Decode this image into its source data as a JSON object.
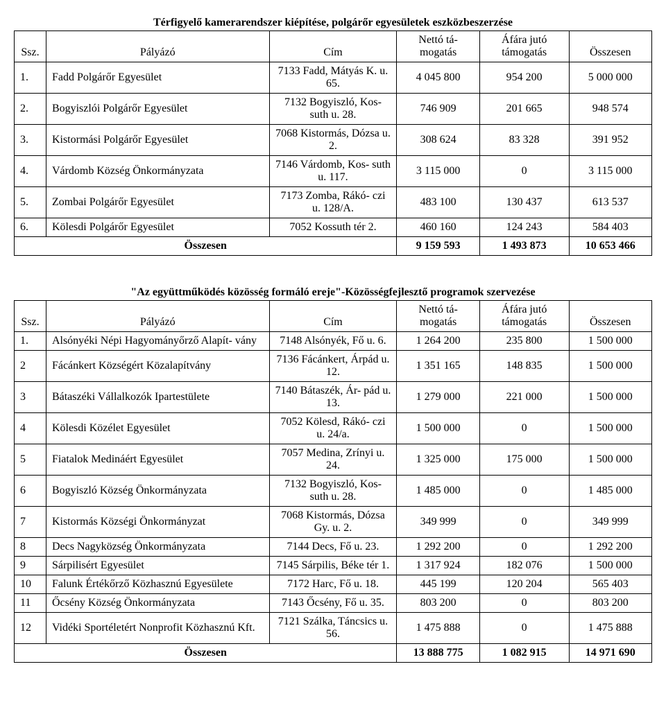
{
  "t1": {
    "title": "Térfigyelő kamerarendszer kiépítése, polgárőr egyesületek eszközbeszerzése",
    "headers": {
      "ssz": "Ssz.",
      "palyazo": "Pályázó",
      "cim": "Cím",
      "netto": "Nettó tá-\nmogatás",
      "afa": "Áfára jutó\ntámogatás",
      "ossz": "Összesen"
    },
    "rows": [
      {
        "ssz": "1.",
        "palyazo": "Fadd Polgárőr Egyesület",
        "cim": "7133 Fadd, Mátyás\nK. u. 65.",
        "netto": "4 045 800",
        "afa": "954 200",
        "ossz": "5 000 000"
      },
      {
        "ssz": "2.",
        "palyazo": "Bogyiszlói Polgárőr Egyesület",
        "cim": "7132 Bogyiszló, Kos-\nsuth u. 28.",
        "netto": "746 909",
        "afa": "201 665",
        "ossz": "948 574"
      },
      {
        "ssz": "3.",
        "palyazo": "Kistormási Polgárőr Egyesület",
        "cim": "7068 Kistormás,\nDózsa u. 2.",
        "netto": "308 624",
        "afa": "83 328",
        "ossz": "391 952"
      },
      {
        "ssz": "4.",
        "palyazo": "Várdomb Község Önkormányzata",
        "cim": "7146 Várdomb, Kos-\nsuth u. 117.",
        "netto": "3 115 000",
        "afa": "0",
        "ossz": "3 115 000"
      },
      {
        "ssz": "5.",
        "palyazo": "Zombai Polgárőr Egyesület",
        "cim": "7173 Zomba, Rákó-\nczi u. 128/A.",
        "netto": "483 100",
        "afa": "130 437",
        "ossz": "613 537"
      },
      {
        "ssz": "6.",
        "palyazo": "Kölesdi Polgárőr Egyesület",
        "cim": "7052 Kossuth tér 2.",
        "netto": "460 160",
        "afa": "124 243",
        "ossz": "584 403"
      }
    ],
    "totals": {
      "label": "Összesen",
      "netto": "9 159 593",
      "afa": "1 493 873",
      "ossz": "10 653 466"
    }
  },
  "t2": {
    "title": "\"Az együttműködés közösség formáló ereje\"-Közösségfejlesztő programok szervezése",
    "headers": {
      "ssz": "Ssz.",
      "palyazo": "Pályázó",
      "cim": "Cím",
      "netto": "Nettó tá-\nmogatás",
      "afa": "Áfára jutó\ntámogatás",
      "ossz": "Összesen"
    },
    "rows": [
      {
        "ssz": "1.",
        "palyazo": "Alsónyéki Népi Hagyományőrző Alapít-\nvány",
        "cim": "7148 Alsónyék, Fő u.\n6.",
        "netto": "1 264 200",
        "afa": "235 800",
        "ossz": "1 500 000"
      },
      {
        "ssz": "2",
        "palyazo": "Fácánkert Községért Közalapítvány",
        "cim": "7136 Fácánkert,\nÁrpád u. 12.",
        "netto": "1 351 165",
        "afa": "148 835",
        "ossz": "1 500 000"
      },
      {
        "ssz": "3",
        "palyazo": "Bátaszéki Vállalkozók Ipartestülete",
        "cim": "7140 Bátaszék, Ár-\npád u. 13.",
        "netto": "1 279 000",
        "afa": "221 000",
        "ossz": "1 500 000"
      },
      {
        "ssz": "4",
        "palyazo": "Kölesdi Közélet Egyesület",
        "cim": "7052  Kölesd, Rákó-\nczi u. 24/a.",
        "netto": "1 500 000",
        "afa": "0",
        "ossz": "1 500 000"
      },
      {
        "ssz": "5",
        "palyazo": "Fiatalok Medináért Egyesület",
        "cim": "7057 Medina, Zrínyi\nu. 24.",
        "netto": "1 325 000",
        "afa": "175 000",
        "ossz": "1 500 000"
      },
      {
        "ssz": "6",
        "palyazo": "Bogyiszló Község Önkormányzata",
        "cim": "7132 Bogyiszló, Kos-\nsuth u. 28.",
        "netto": "1 485 000",
        "afa": "0",
        "ossz": "1 485 000"
      },
      {
        "ssz": "7",
        "palyazo": "Kistormás Községi Önkormányzat",
        "cim": "7068 Kistormás,\nDózsa Gy. u. 2.",
        "netto": "349 999",
        "afa": "0",
        "ossz": "349 999"
      },
      {
        "ssz": "8",
        "palyazo": "Decs Nagyközség Önkormányzata",
        "cim": "7144 Decs, Fő u. 23.",
        "netto": "1 292 200",
        "afa": "0",
        "ossz": "1 292 200"
      },
      {
        "ssz": "9",
        "palyazo": "Sárpilisért Egyesület",
        "cim": "7145 Sárpilis, Béke\ntér 1.",
        "netto": "1 317 924",
        "afa": "182 076",
        "ossz": "1 500 000"
      },
      {
        "ssz": "10",
        "palyazo": "Falunk Értékőrző Közhasznú Egyesülete",
        "cim": "7172 Harc, Fő u. 18.",
        "netto": "445 199",
        "afa": "120 204",
        "ossz": "565 403"
      },
      {
        "ssz": "11",
        "palyazo": "Őcsény Község Önkormányzata",
        "cim": "7143 Őcsény, Fő u.\n35.",
        "netto": "803 200",
        "afa": "0",
        "ossz": "803 200"
      },
      {
        "ssz": "12",
        "palyazo": "Vidéki Sportéletért Nonprofit Közhasznú\nKft.",
        "cim": "7121 Szálka, Táncsics\nu. 56.",
        "netto": "1 475 888",
        "afa": "0",
        "ossz": "1 475 888"
      }
    ],
    "totals": {
      "label": "Összesen",
      "netto": "13 888 775",
      "afa": "1 082 915",
      "ossz": "14 971 690"
    }
  }
}
